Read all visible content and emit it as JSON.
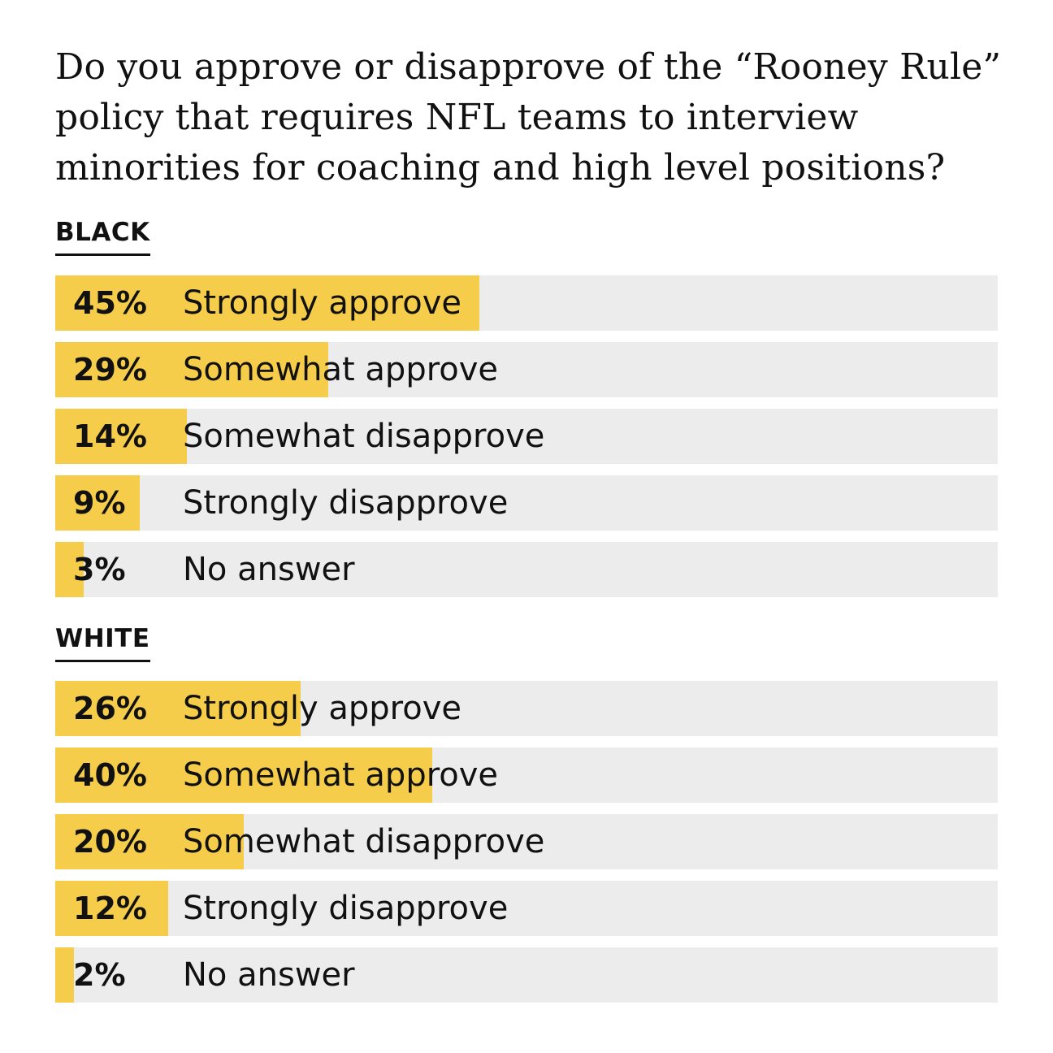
{
  "chart_data": {
    "type": "bar",
    "title": "Do you approve or disapprove of the “Rooney Rule” policy that requires NFL teams to interview minorities for coaching and high level positions?",
    "xlim": [
      0,
      100
    ],
    "groups": [
      {
        "name": "BLACK",
        "bars": [
          {
            "label": "45%",
            "category": "Strongly approve",
            "value": 45
          },
          {
            "label": "29%",
            "category": "Somewhat approve",
            "value": 29
          },
          {
            "label": "14%",
            "category": "Somewhat disapprove",
            "value": 14
          },
          {
            "label": "9%",
            "category": "Strongly disapprove",
            "value": 9
          },
          {
            "label": "3%",
            "category": "No answer",
            "value": 3
          }
        ]
      },
      {
        "name": "WHITE",
        "bars": [
          {
            "label": "26%",
            "category": "Strongly approve",
            "value": 26
          },
          {
            "label": "40%",
            "category": "Somewhat approve",
            "value": 40
          },
          {
            "label": "20%",
            "category": "Somewhat disapprove",
            "value": 20
          },
          {
            "label": "12%",
            "category": "Strongly disapprove",
            "value": 12
          },
          {
            "label": "2%",
            "category": "No answer",
            "value": 2
          }
        ]
      }
    ],
    "colors": {
      "fill": "#f5cd4b",
      "track": "#ececec",
      "text": "#111111"
    }
  }
}
